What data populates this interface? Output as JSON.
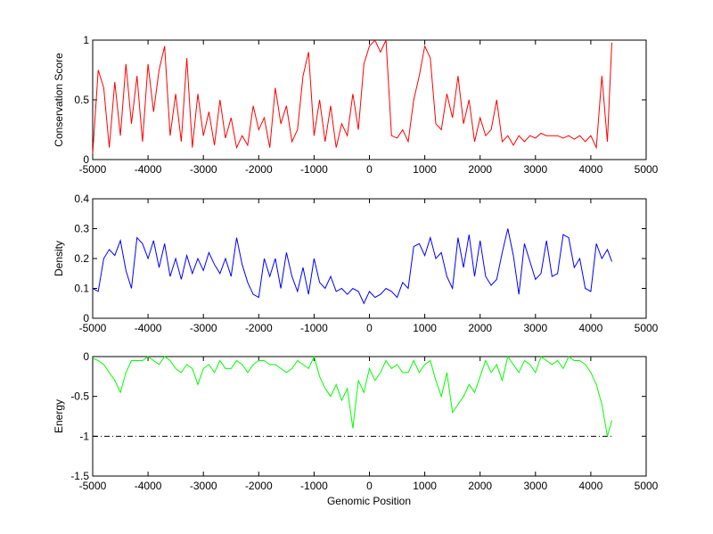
{
  "chart_data": [
    {
      "type": "line",
      "ylabel": "Conservation Score",
      "xlabel": "",
      "xlim": [
        -5000,
        5000
      ],
      "ylim": [
        0,
        1
      ],
      "xticks": [
        -5000,
        -4000,
        -3000,
        -2000,
        -1000,
        0,
        1000,
        2000,
        3000,
        4000,
        5000
      ],
      "xtick_labels": [
        "-5000",
        "-4000",
        "-3000",
        "-2000",
        "-1000",
        "0",
        "1000",
        "2000",
        "3000",
        "4000",
        "5000"
      ],
      "yticks": [
        0,
        0.5,
        1
      ],
      "ytick_labels": [
        "0",
        "0.5",
        "1"
      ],
      "grid": false,
      "series": [
        {
          "color": "#ff0000",
          "x": [
            -5000,
            -4900,
            -4800,
            -4700,
            -4600,
            -4500,
            -4400,
            -4300,
            -4200,
            -4100,
            -4000,
            -3900,
            -3800,
            -3700,
            -3600,
            -3500,
            -3400,
            -3300,
            -3200,
            -3100,
            -3000,
            -2900,
            -2800,
            -2700,
            -2600,
            -2500,
            -2400,
            -2300,
            -2200,
            -2100,
            -2000,
            -1900,
            -1800,
            -1700,
            -1600,
            -1500,
            -1400,
            -1300,
            -1200,
            -1100,
            -1000,
            -900,
            -800,
            -700,
            -600,
            -500,
            -400,
            -300,
            -200,
            -100,
            0,
            100,
            200,
            300,
            400,
            500,
            600,
            700,
            800,
            900,
            1000,
            1100,
            1200,
            1300,
            1400,
            1500,
            1600,
            1700,
            1800,
            1900,
            2000,
            2100,
            2200,
            2300,
            2400,
            2500,
            2600,
            2700,
            2800,
            2900,
            3000,
            3100,
            3200,
            3300,
            3400,
            3500,
            3600,
            3700,
            3800,
            3900,
            4000,
            4100,
            4200,
            4300,
            4380
          ],
          "y": [
            0.05,
            0.75,
            0.6,
            0.1,
            0.65,
            0.2,
            0.8,
            0.3,
            0.7,
            0.15,
            0.8,
            0.4,
            0.75,
            0.95,
            0.2,
            0.55,
            0.15,
            0.85,
            0.1,
            0.55,
            0.2,
            0.4,
            0.12,
            0.5,
            0.18,
            0.35,
            0.1,
            0.2,
            0.12,
            0.45,
            0.25,
            0.35,
            0.1,
            0.6,
            0.3,
            0.45,
            0.15,
            0.25,
            0.7,
            0.9,
            0.2,
            0.5,
            0.15,
            0.45,
            0.1,
            0.3,
            0.2,
            0.55,
            0.25,
            0.8,
            0.95,
            1.0,
            0.9,
            1.0,
            0.2,
            0.18,
            0.25,
            0.15,
            0.5,
            0.7,
            0.95,
            0.85,
            0.3,
            0.25,
            0.55,
            0.35,
            0.7,
            0.3,
            0.5,
            0.15,
            0.35,
            0.2,
            0.25,
            0.5,
            0.15,
            0.2,
            0.12,
            0.2,
            0.15,
            0.2,
            0.18,
            0.22,
            0.2,
            0.2,
            0.2,
            0.18,
            0.2,
            0.17,
            0.2,
            0.15,
            0.2,
            0.1,
            0.7,
            0.15,
            0.98
          ]
        }
      ]
    },
    {
      "type": "line",
      "ylabel": "Density",
      "xlabel": "",
      "xlim": [
        -5000,
        5000
      ],
      "ylim": [
        0,
        0.4
      ],
      "xticks": [
        -5000,
        -4000,
        -3000,
        -2000,
        -1000,
        0,
        1000,
        2000,
        3000,
        4000,
        5000
      ],
      "xtick_labels": [
        "-5000",
        "-4000",
        "-3000",
        "-2000",
        "-1000",
        "0",
        "1000",
        "2000",
        "3000",
        "4000",
        "5000"
      ],
      "yticks": [
        0,
        0.1,
        0.2,
        0.3,
        0.4
      ],
      "ytick_labels": [
        "0",
        "0.1",
        "0.2",
        "0.3",
        "0.4"
      ],
      "grid": false,
      "series": [
        {
          "color": "#0000ff",
          "x": [
            -5000,
            -4900,
            -4800,
            -4700,
            -4600,
            -4500,
            -4400,
            -4300,
            -4200,
            -4100,
            -4000,
            -3900,
            -3800,
            -3700,
            -3600,
            -3500,
            -3400,
            -3300,
            -3200,
            -3100,
            -3000,
            -2900,
            -2800,
            -2700,
            -2600,
            -2500,
            -2400,
            -2300,
            -2200,
            -2100,
            -2000,
            -1900,
            -1800,
            -1700,
            -1600,
            -1500,
            -1400,
            -1300,
            -1200,
            -1100,
            -1000,
            -900,
            -800,
            -700,
            -600,
            -500,
            -400,
            -300,
            -200,
            -100,
            0,
            100,
            200,
            300,
            400,
            500,
            600,
            700,
            800,
            900,
            1000,
            1100,
            1200,
            1300,
            1400,
            1500,
            1600,
            1700,
            1800,
            1900,
            2000,
            2100,
            2200,
            2300,
            2400,
            2500,
            2600,
            2700,
            2800,
            2900,
            3000,
            3100,
            3200,
            3300,
            3400,
            3500,
            3600,
            3700,
            3800,
            3900,
            4000,
            4100,
            4200,
            4300,
            4380
          ],
          "y": [
            0.1,
            0.09,
            0.2,
            0.23,
            0.21,
            0.26,
            0.16,
            0.1,
            0.27,
            0.25,
            0.2,
            0.26,
            0.17,
            0.25,
            0.14,
            0.2,
            0.13,
            0.21,
            0.15,
            0.2,
            0.16,
            0.22,
            0.18,
            0.15,
            0.2,
            0.14,
            0.27,
            0.18,
            0.12,
            0.08,
            0.07,
            0.2,
            0.14,
            0.2,
            0.1,
            0.22,
            0.14,
            0.09,
            0.17,
            0.08,
            0.2,
            0.12,
            0.1,
            0.14,
            0.09,
            0.1,
            0.08,
            0.1,
            0.09,
            0.05,
            0.09,
            0.07,
            0.08,
            0.1,
            0.09,
            0.07,
            0.12,
            0.1,
            0.24,
            0.25,
            0.21,
            0.27,
            0.2,
            0.22,
            0.14,
            0.1,
            0.27,
            0.17,
            0.28,
            0.14,
            0.26,
            0.14,
            0.11,
            0.13,
            0.22,
            0.3,
            0.21,
            0.08,
            0.25,
            0.19,
            0.13,
            0.15,
            0.26,
            0.14,
            0.15,
            0.28,
            0.27,
            0.17,
            0.2,
            0.1,
            0.09,
            0.25,
            0.2,
            0.23,
            0.19
          ]
        }
      ]
    },
    {
      "type": "line",
      "ylabel": "Energy",
      "xlabel": "Genomic Position",
      "xlim": [
        -5000,
        5000
      ],
      "ylim": [
        -1.5,
        0
      ],
      "xticks": [
        -5000,
        -4000,
        -3000,
        -2000,
        -1000,
        0,
        1000,
        2000,
        3000,
        4000,
        5000
      ],
      "xtick_labels": [
        "-5000",
        "-4000",
        "-3000",
        "-2000",
        "-1000",
        "0",
        "1000",
        "2000",
        "3000",
        "4000",
        "5000"
      ],
      "yticks": [
        -1.5,
        -1,
        -0.5,
        0
      ],
      "ytick_labels": [
        "-1.5",
        "-1",
        "-0.5",
        "0"
      ],
      "grid": false,
      "reference_line": {
        "y": -1,
        "x": [
          -5000,
          4380
        ],
        "color": "#000000",
        "style": "dash-dot"
      },
      "series": [
        {
          "color": "#00ff00",
          "x": [
            -5000,
            -4900,
            -4800,
            -4700,
            -4600,
            -4500,
            -4400,
            -4300,
            -4200,
            -4100,
            -4000,
            -3900,
            -3800,
            -3700,
            -3600,
            -3500,
            -3400,
            -3300,
            -3200,
            -3100,
            -3000,
            -2900,
            -2800,
            -2700,
            -2600,
            -2500,
            -2400,
            -2300,
            -2200,
            -2100,
            -2000,
            -1900,
            -1800,
            -1700,
            -1600,
            -1500,
            -1400,
            -1300,
            -1200,
            -1100,
            -1000,
            -900,
            -800,
            -700,
            -600,
            -500,
            -400,
            -300,
            -200,
            -100,
            0,
            100,
            200,
            300,
            400,
            500,
            600,
            700,
            800,
            900,
            1000,
            1100,
            1200,
            1300,
            1400,
            1500,
            1600,
            1700,
            1800,
            1900,
            2000,
            2100,
            2200,
            2300,
            2400,
            2500,
            2600,
            2700,
            2800,
            2900,
            3000,
            3100,
            3200,
            3300,
            3400,
            3500,
            3600,
            3700,
            3800,
            3900,
            4000,
            4100,
            4200,
            4300,
            4380
          ],
          "y": [
            -0.02,
            -0.05,
            -0.1,
            -0.2,
            -0.3,
            -0.45,
            -0.2,
            -0.05,
            -0.05,
            -0.05,
            0,
            -0.05,
            -0.1,
            0,
            -0.05,
            -0.15,
            -0.2,
            -0.1,
            -0.15,
            -0.35,
            -0.15,
            -0.1,
            -0.2,
            -0.05,
            -0.15,
            -0.15,
            -0.05,
            -0.1,
            -0.2,
            -0.1,
            -0.05,
            -0.05,
            -0.1,
            -0.1,
            -0.15,
            -0.2,
            -0.15,
            -0.05,
            -0.1,
            -0.15,
            0,
            -0.25,
            -0.4,
            -0.5,
            -0.35,
            -0.55,
            -0.4,
            -0.9,
            -0.3,
            -0.45,
            -0.15,
            -0.3,
            -0.2,
            -0.05,
            -0.15,
            -0.1,
            -0.2,
            -0.2,
            -0.05,
            -0.2,
            -0.1,
            -0.05,
            -0.3,
            -0.5,
            -0.2,
            -0.7,
            -0.6,
            -0.5,
            -0.35,
            -0.45,
            -0.25,
            -0.05,
            -0.2,
            -0.1,
            -0.3,
            0,
            -0.1,
            -0.2,
            -0.05,
            -0.1,
            -0.2,
            0,
            -0.05,
            -0.1,
            -0.05,
            -0.15,
            0,
            -0.05,
            -0.05,
            -0.1,
            -0.2,
            -0.35,
            -0.6,
            -1.0,
            -0.8
          ]
        }
      ]
    }
  ]
}
